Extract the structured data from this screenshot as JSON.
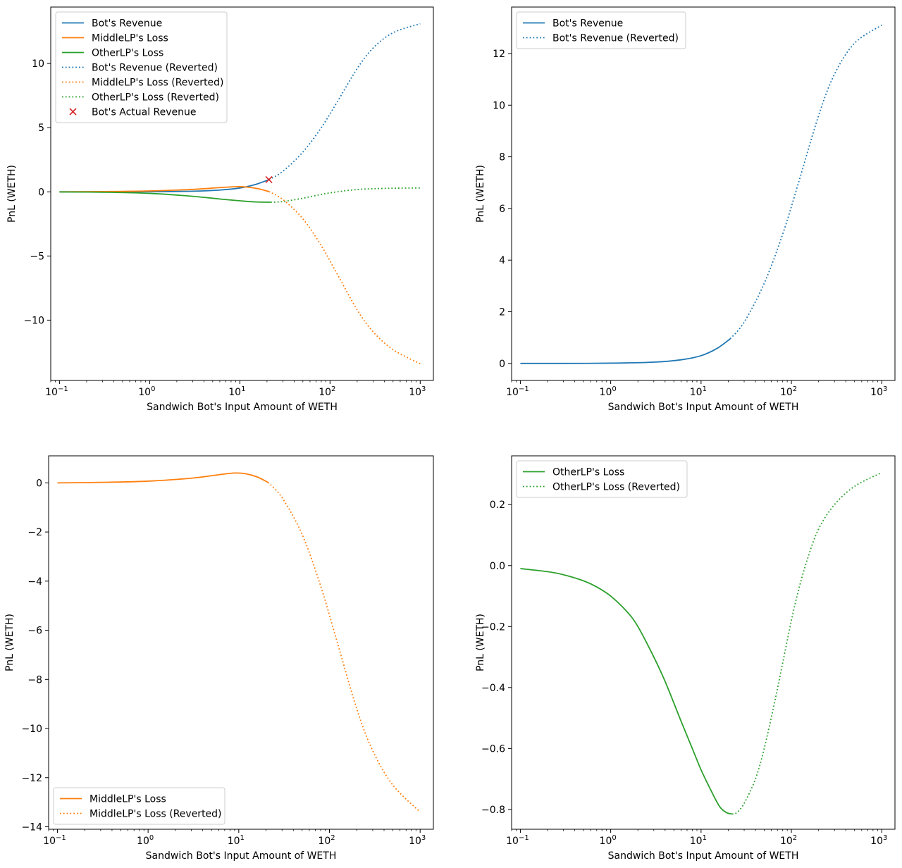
{
  "chart_data": [
    {
      "id": "p1",
      "type": "line",
      "xlabel": "Sandwich Bot's Input Amount of WETH",
      "ylabel": "PnL (WETH)",
      "xscale": "log",
      "xlim": [
        0.08,
        1400
      ],
      "ylim": [
        -14.7,
        14.4
      ],
      "xticks": [
        {
          "v": 0.1,
          "base": "10",
          "exp": "−1"
        },
        {
          "v": 1,
          "base": "10",
          "exp": "0"
        },
        {
          "v": 10,
          "base": "10",
          "exp": "1"
        },
        {
          "v": 100,
          "base": "10",
          "exp": "2"
        },
        {
          "v": 1000,
          "base": "10",
          "exp": "3"
        }
      ],
      "yticks": [
        {
          "v": 10,
          "label": "10"
        },
        {
          "v": 5,
          "label": "5"
        },
        {
          "v": 0,
          "label": "0"
        },
        {
          "v": -5,
          "label": "−5"
        },
        {
          "v": -10,
          "label": "−10"
        }
      ],
      "legend_position": "upper-left",
      "series": [
        {
          "name": "Bot's Revenue",
          "color": "#1f77b4",
          "style": "solid",
          "x": [
            0.1,
            0.3,
            1,
            3,
            6,
            10,
            15,
            21
          ],
          "y": [
            0,
            0,
            0.01,
            0.05,
            0.14,
            0.3,
            0.58,
            0.95
          ]
        },
        {
          "name": "MiddleLP's Loss",
          "color": "#ff7f0e",
          "style": "solid",
          "x": [
            0.1,
            0.3,
            1,
            3,
            6,
            9,
            12,
            16,
            21
          ],
          "y": [
            0,
            0.02,
            0.07,
            0.19,
            0.33,
            0.4,
            0.37,
            0.24,
            0.02
          ]
        },
        {
          "name": "OtherLP's Loss",
          "color": "#2ca02c",
          "style": "solid",
          "x": [
            0.1,
            0.3,
            1,
            3,
            6,
            10,
            15,
            22
          ],
          "y": [
            -0.01,
            -0.03,
            -0.12,
            -0.35,
            -0.56,
            -0.7,
            -0.79,
            -0.81
          ]
        },
        {
          "name": "Bot's Revenue (Reverted)",
          "color": "#1f77b4",
          "style": "dotted",
          "x": [
            21,
            30,
            50,
            80,
            120,
            200,
            300,
            500,
            1000
          ],
          "y": [
            0.95,
            1.6,
            3.1,
            5.0,
            7.0,
            9.6,
            11.2,
            12.4,
            13.1
          ]
        },
        {
          "name": "MiddleLP's Loss (Reverted)",
          "color": "#ff7f0e",
          "style": "dotted",
          "x": [
            21,
            30,
            50,
            80,
            120,
            200,
            300,
            500,
            1000
          ],
          "y": [
            0.02,
            -0.6,
            -2.1,
            -4.2,
            -6.4,
            -9.2,
            -10.9,
            -12.3,
            -13.4
          ]
        },
        {
          "name": "OtherLP's Loss (Reverted)",
          "color": "#2ca02c",
          "style": "dotted",
          "x": [
            22,
            30,
            50,
            80,
            120,
            200,
            300,
            500,
            1000
          ],
          "y": [
            -0.81,
            -0.76,
            -0.5,
            -0.2,
            0.0,
            0.18,
            0.24,
            0.28,
            0.3
          ]
        },
        {
          "name": "Bot's Actual Revenue",
          "color": "#d62728",
          "style": "marker-x",
          "x": [
            21
          ],
          "y": [
            0.95
          ]
        }
      ]
    },
    {
      "id": "p2",
      "type": "line",
      "xlabel": "Sandwich Bot's Input Amount of WETH",
      "ylabel": "PnL (WETH)",
      "xscale": "log",
      "xlim": [
        0.08,
        1400
      ],
      "ylim": [
        -0.66,
        13.8
      ],
      "xticks": [
        {
          "v": 0.1,
          "base": "10",
          "exp": "−1"
        },
        {
          "v": 1,
          "base": "10",
          "exp": "0"
        },
        {
          "v": 10,
          "base": "10",
          "exp": "1"
        },
        {
          "v": 100,
          "base": "10",
          "exp": "2"
        },
        {
          "v": 1000,
          "base": "10",
          "exp": "3"
        }
      ],
      "yticks": [
        {
          "v": 12,
          "label": "12"
        },
        {
          "v": 10,
          "label": "10"
        },
        {
          "v": 8,
          "label": "8"
        },
        {
          "v": 6,
          "label": "6"
        },
        {
          "v": 4,
          "label": "4"
        },
        {
          "v": 2,
          "label": "2"
        },
        {
          "v": 0,
          "label": "0"
        }
      ],
      "legend_position": "upper-left",
      "series": [
        {
          "name": "Bot's Revenue",
          "color": "#1f77b4",
          "style": "solid",
          "x": [
            0.1,
            0.3,
            1,
            3,
            6,
            10,
            15,
            21
          ],
          "y": [
            0,
            0,
            0.01,
            0.05,
            0.14,
            0.3,
            0.58,
            0.95
          ]
        },
        {
          "name": "Bot's Revenue (Reverted)",
          "color": "#1f77b4",
          "style": "dotted",
          "x": [
            21,
            30,
            50,
            80,
            120,
            200,
            300,
            500,
            1000
          ],
          "y": [
            0.95,
            1.6,
            3.1,
            5.0,
            7.0,
            9.6,
            11.2,
            12.4,
            13.1
          ]
        }
      ]
    },
    {
      "id": "p3",
      "type": "line",
      "xlabel": "Sandwich Bot's Input Amount of WETH",
      "ylabel": "PnL (WETH)",
      "xscale": "log",
      "xlim": [
        0.08,
        1400
      ],
      "ylim": [
        -14.1,
        1.1
      ],
      "xticks": [
        {
          "v": 0.1,
          "base": "10",
          "exp": "−1"
        },
        {
          "v": 1,
          "base": "10",
          "exp": "0"
        },
        {
          "v": 10,
          "base": "10",
          "exp": "1"
        },
        {
          "v": 100,
          "base": "10",
          "exp": "2"
        },
        {
          "v": 1000,
          "base": "10",
          "exp": "3"
        }
      ],
      "yticks": [
        {
          "v": 0,
          "label": "0"
        },
        {
          "v": -2,
          "label": "−2"
        },
        {
          "v": -4,
          "label": "−4"
        },
        {
          "v": -6,
          "label": "−6"
        },
        {
          "v": -8,
          "label": "−8"
        },
        {
          "v": -10,
          "label": "−10"
        },
        {
          "v": -12,
          "label": "−12"
        },
        {
          "v": -14,
          "label": "−14"
        }
      ],
      "legend_position": "lower-left",
      "series": [
        {
          "name": "MiddleLP's Loss",
          "color": "#ff7f0e",
          "style": "solid",
          "x": [
            0.1,
            0.3,
            1,
            3,
            6,
            9,
            12,
            16,
            21
          ],
          "y": [
            0,
            0.02,
            0.07,
            0.19,
            0.33,
            0.4,
            0.37,
            0.24,
            0.02
          ]
        },
        {
          "name": "MiddleLP's Loss (Reverted)",
          "color": "#ff7f0e",
          "style": "dotted",
          "x": [
            21,
            30,
            50,
            80,
            120,
            200,
            300,
            500,
            1000
          ],
          "y": [
            0.02,
            -0.6,
            -2.1,
            -4.2,
            -6.4,
            -9.2,
            -10.9,
            -12.3,
            -13.4
          ]
        }
      ]
    },
    {
      "id": "p4",
      "type": "line",
      "xlabel": "Sandwich Bot's Input Amount of WETH",
      "ylabel": "PnL (WETH)",
      "xscale": "log",
      "xlim": [
        0.08,
        1400
      ],
      "ylim": [
        -0.865,
        0.36
      ],
      "xticks": [
        {
          "v": 0.1,
          "base": "10",
          "exp": "−1"
        },
        {
          "v": 1,
          "base": "10",
          "exp": "0"
        },
        {
          "v": 10,
          "base": "10",
          "exp": "1"
        },
        {
          "v": 100,
          "base": "10",
          "exp": "2"
        },
        {
          "v": 1000,
          "base": "10",
          "exp": "3"
        }
      ],
      "yticks": [
        {
          "v": 0.2,
          "label": "0.2"
        },
        {
          "v": 0,
          "label": "0.0"
        },
        {
          "v": -0.2,
          "label": "−0.2"
        },
        {
          "v": -0.4,
          "label": "−0.4"
        },
        {
          "v": -0.6,
          "label": "−0.6"
        },
        {
          "v": -0.8,
          "label": "−0.8"
        }
      ],
      "legend_position": "upper-left",
      "series": [
        {
          "name": "OtherLP's Loss",
          "color": "#2ca02c",
          "style": "solid",
          "x": [
            0.1,
            0.2,
            0.3,
            0.5,
            0.7,
            1,
            1.5,
            2,
            3,
            4,
            6,
            8,
            10,
            13,
            16,
            19,
            22
          ],
          "y": [
            -0.01,
            -0.02,
            -0.03,
            -0.05,
            -0.07,
            -0.1,
            -0.15,
            -0.2,
            -0.3,
            -0.38,
            -0.51,
            -0.6,
            -0.67,
            -0.74,
            -0.79,
            -0.81,
            -0.815
          ]
        },
        {
          "name": "OtherLP's Loss (Reverted)",
          "color": "#2ca02c",
          "style": "dotted",
          "x": [
            22,
            25,
            30,
            40,
            50,
            65,
            80,
            100,
            120,
            150,
            200,
            300,
            500,
            1000
          ],
          "y": [
            -0.815,
            -0.81,
            -0.78,
            -0.7,
            -0.6,
            -0.45,
            -0.32,
            -0.18,
            -0.08,
            0.02,
            0.12,
            0.2,
            0.26,
            0.305
          ]
        }
      ]
    }
  ]
}
